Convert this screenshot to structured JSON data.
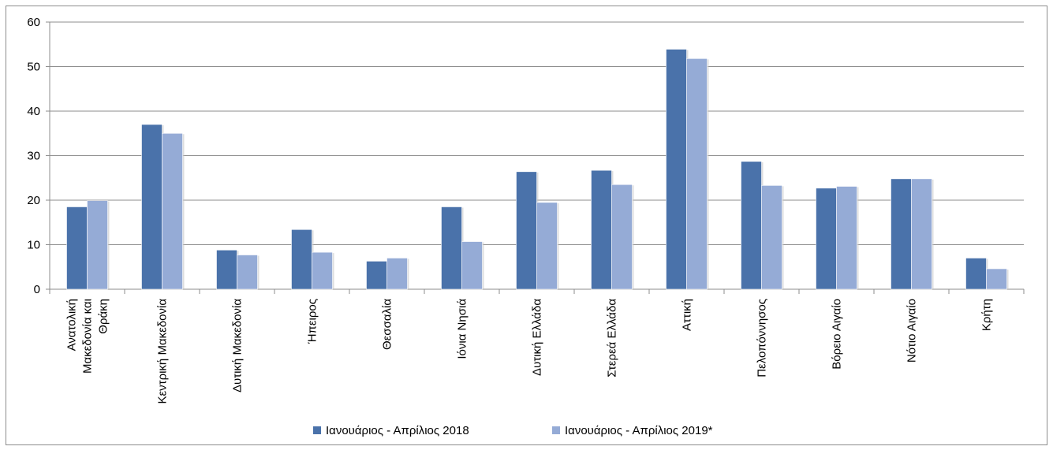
{
  "chart_data": {
    "type": "bar",
    "title": "",
    "xlabel": "",
    "ylabel": "",
    "ylim": [
      0,
      60
    ],
    "yticks": [
      0,
      10,
      20,
      30,
      40,
      50,
      60
    ],
    "grid": true,
    "legend_position": "bottom",
    "categories": [
      [
        "Ανατολική",
        "Μακεδονία και",
        "Θράκη"
      ],
      [
        "Κεντρική Μακεδονία"
      ],
      [
        "Δυτική Μακεδονία"
      ],
      [
        "Ήπειρος"
      ],
      [
        "Θεσσαλία"
      ],
      [
        "Ιόνια Νησιά"
      ],
      [
        "Δυτική Ελλάδα"
      ],
      [
        "Στερεά Ελλάδα"
      ],
      [
        "Αττική"
      ],
      [
        "Πελοπόννησος"
      ],
      [
        "Βόρειο Αιγαίο"
      ],
      [
        "Νότιο Αιγαίο"
      ],
      [
        "Κρήτη"
      ]
    ],
    "series": [
      {
        "name": "Ιανουάριος - Απρίλιος 2018",
        "color": "#4a72aa",
        "values": [
          18.5,
          37,
          8.8,
          13.4,
          6.3,
          18.5,
          26.4,
          26.7,
          53.9,
          28.7,
          22.7,
          24.8,
          7.0
        ]
      },
      {
        "name": "Ιανουάριος - Απρίλιος 2019*",
        "color": "#95abd6",
        "values": [
          19.9,
          35,
          7.7,
          8.3,
          7.0,
          10.7,
          19.5,
          23.5,
          51.8,
          23.3,
          23.1,
          24.8,
          4.6
        ]
      }
    ]
  }
}
